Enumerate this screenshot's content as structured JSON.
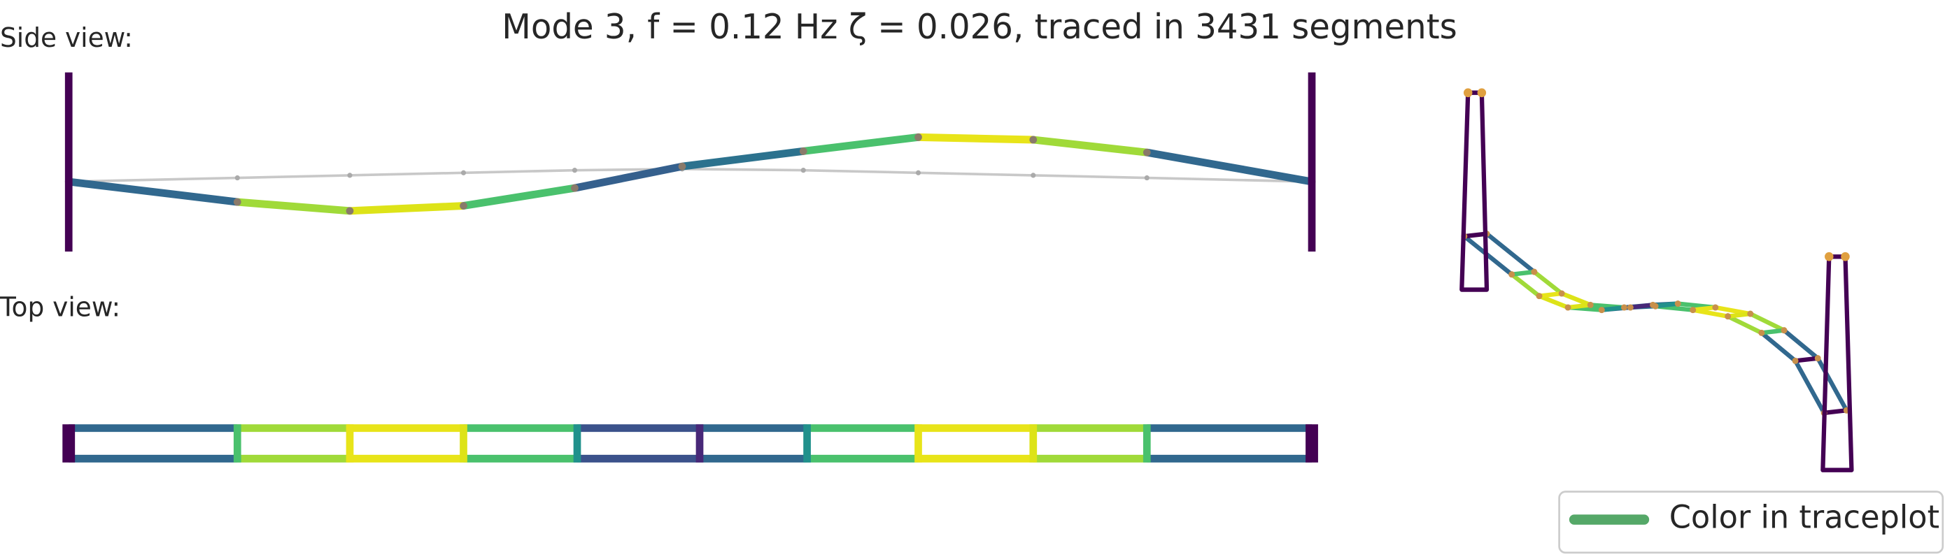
{
  "title": "Mode 3, f = 0.12 Hz   ζ = 0.026,  traced in 3431 segments",
  "side_view_label": "Side view:",
  "top_view_label": "Top view:",
  "legend": {
    "label": "Color in traceplot"
  }
}
